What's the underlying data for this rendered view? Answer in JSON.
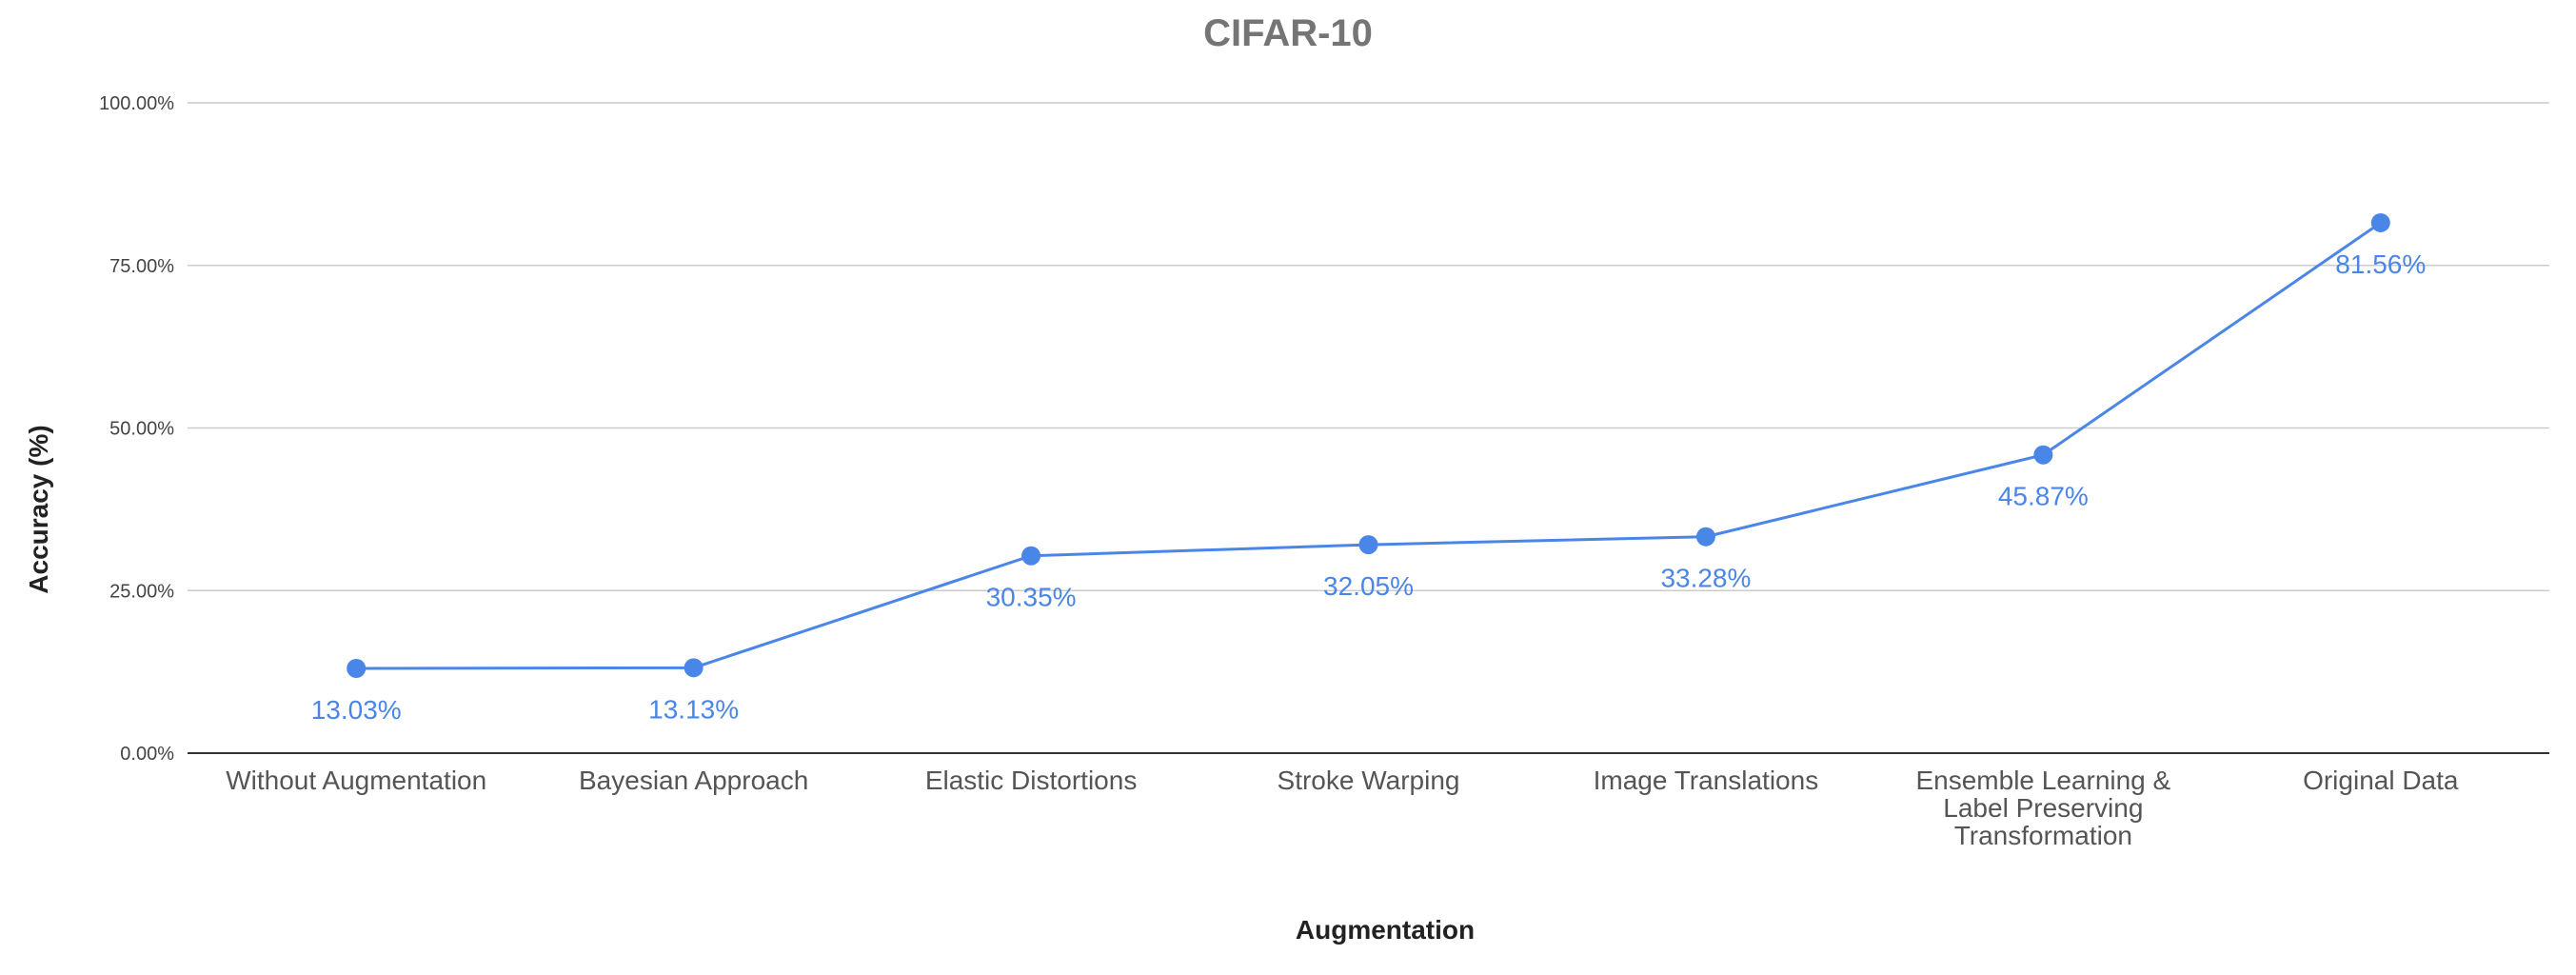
{
  "chart_data": {
    "type": "line",
    "title": "CIFAR-10",
    "xlabel": "Augmentation",
    "ylabel": "Accuracy (%)",
    "categories": [
      [
        "Without Augmentation"
      ],
      [
        "Bayesian Approach"
      ],
      [
        "Elastic Distortions"
      ],
      [
        "Stroke Warping"
      ],
      [
        "Image Translations"
      ],
      [
        "Ensemble Learning &",
        "Label Preserving",
        "Transformation"
      ],
      [
        "Original Data"
      ]
    ],
    "series": [
      {
        "values": [
          13.03,
          13.13,
          30.35,
          32.05,
          33.28,
          45.87,
          81.56
        ],
        "labels": [
          "13.03%",
          "13.13%",
          "30.35%",
          "32.05%",
          "33.28%",
          "45.87%",
          "81.56%"
        ]
      }
    ],
    "ylim": [
      0,
      100
    ],
    "yticks": [
      0,
      25,
      50,
      75,
      100
    ],
    "ytick_labels": [
      "0.00%",
      "25.00%",
      "50.00%",
      "75.00%",
      "100.00%"
    ],
    "grid": true,
    "legend": "none",
    "colors": {
      "series": "#4a86e8",
      "grid": "#cccccc",
      "baseline": "#333333",
      "title": "#757575"
    }
  }
}
